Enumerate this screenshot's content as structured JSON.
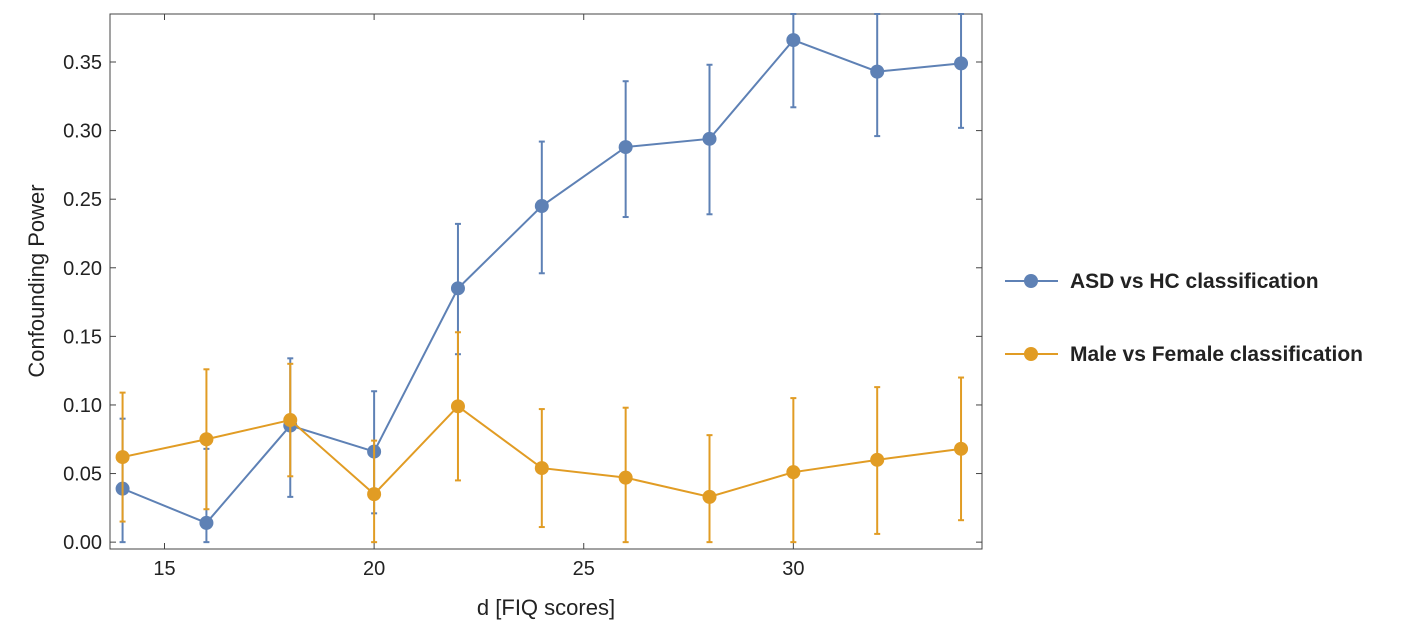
{
  "chart_data": {
    "type": "line",
    "title": "",
    "xlabel": "d [FIQ scores]",
    "ylabel": "Confounding Power",
    "xlim": [
      13.7,
      34.5
    ],
    "ylim": [
      -0.005,
      0.385
    ],
    "xticks": [
      15,
      20,
      25,
      30
    ],
    "xtick_labels": [
      "15",
      "20",
      "25",
      "30"
    ],
    "yticks": [
      0.0,
      0.05,
      0.1,
      0.15,
      0.2,
      0.25,
      0.3,
      0.35
    ],
    "ytick_labels": [
      "0.00",
      "0.05",
      "0.10",
      "0.15",
      "0.20",
      "0.25",
      "0.30",
      "0.35"
    ],
    "grid": false,
    "legend_position": "right",
    "error_bars": true,
    "x": [
      14,
      16,
      18,
      20,
      22,
      24,
      26,
      28,
      30,
      32,
      34
    ],
    "series": [
      {
        "name": "ASD vs HC classification",
        "color": "#5e81b5",
        "values": [
          0.039,
          0.014,
          0.085,
          0.066,
          0.185,
          0.245,
          0.288,
          0.294,
          0.366,
          0.343,
          0.349
        ],
        "error_low": [
          0.0,
          0.0,
          0.033,
          0.021,
          0.137,
          0.196,
          0.237,
          0.239,
          0.317,
          0.296,
          0.302
        ],
        "error_high": [
          0.09,
          0.068,
          0.134,
          0.11,
          0.232,
          0.292,
          0.336,
          0.348,
          0.385,
          0.385,
          0.385
        ]
      },
      {
        "name": "Male vs Female classification",
        "color": "#e19c24",
        "values": [
          0.062,
          0.075,
          0.089,
          0.035,
          0.099,
          0.054,
          0.047,
          0.033,
          0.051,
          0.06,
          0.068
        ],
        "error_low": [
          0.015,
          0.024,
          0.048,
          0.0,
          0.045,
          0.011,
          0.0,
          0.0,
          0.0,
          0.006,
          0.016
        ],
        "error_high": [
          0.109,
          0.126,
          0.13,
          0.074,
          0.153,
          0.097,
          0.098,
          0.078,
          0.105,
          0.113,
          0.12
        ]
      }
    ]
  }
}
